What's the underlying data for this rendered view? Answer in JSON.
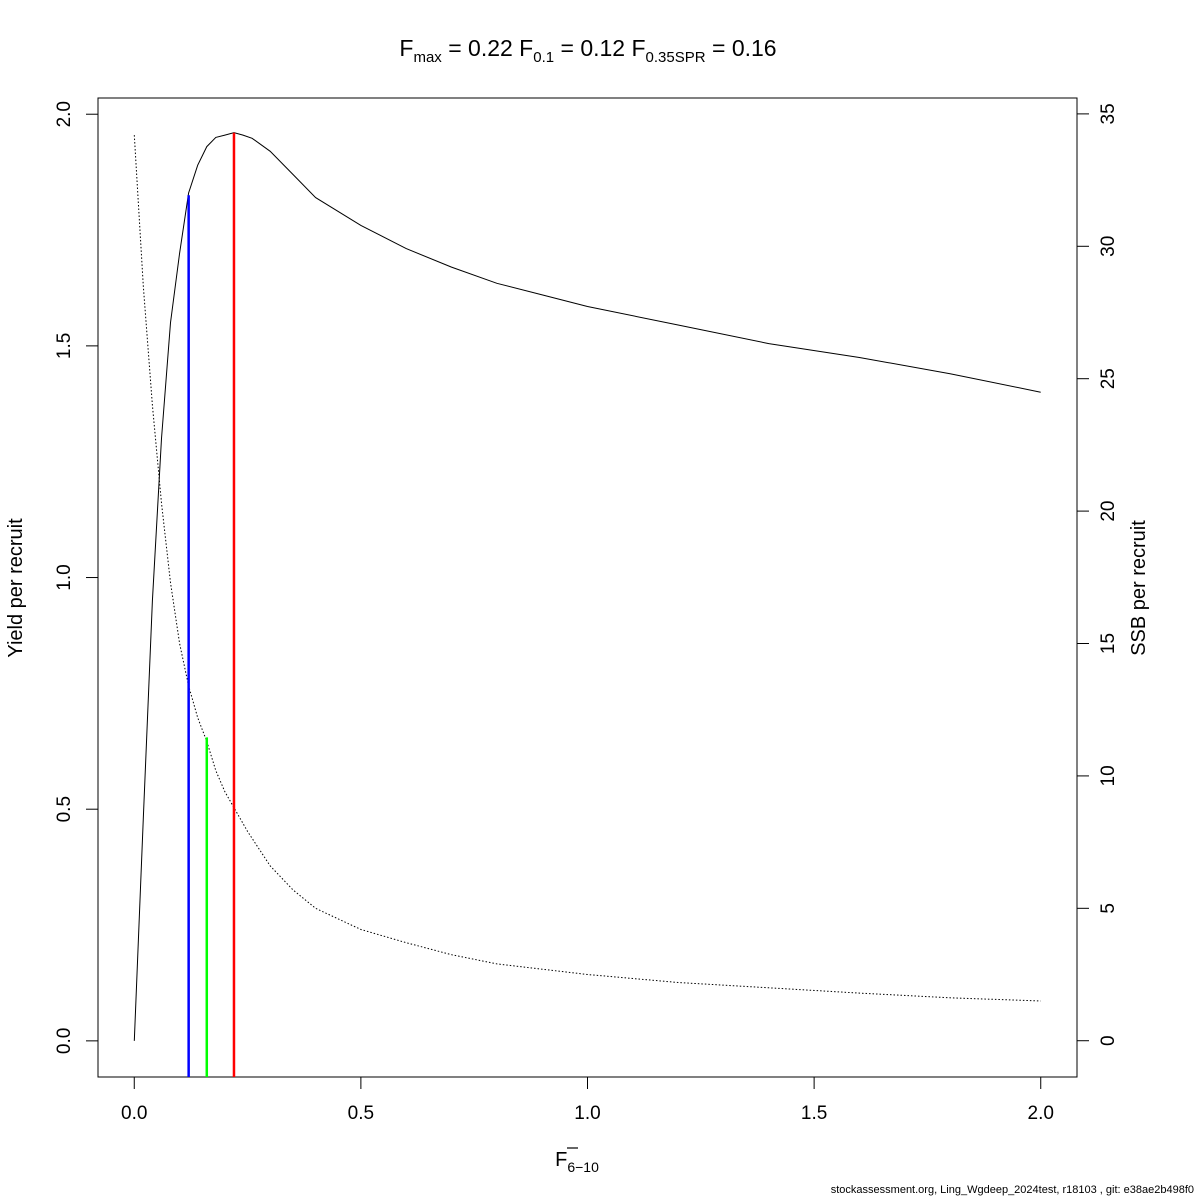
{
  "chart_data": {
    "type": "line",
    "title": {
      "fmax_sub": "max",
      "fmax_value": "0.22",
      "f01_sub": "0.1",
      "f01_value": "0.12",
      "fspr_sub": "0.35SPR",
      "fspr_value": "0.16"
    },
    "xlabel_main": "F",
    "xlabel_sub": "6−10",
    "ylabel": "Yield per recruit",
    "y2label": "SSB per recruit",
    "xlim": [
      -0.08,
      2.08
    ],
    "ylim": [
      -0.078,
      2.035
    ],
    "y2lim": [
      -1.37,
      35.6
    ],
    "x_ticks": [
      0.0,
      0.5,
      1.0,
      1.5,
      2.0
    ],
    "x_tick_labels": [
      "0.0",
      "0.5",
      "1.0",
      "1.5",
      "2.0"
    ],
    "y_ticks": [
      0.0,
      0.5,
      1.0,
      1.5,
      2.0
    ],
    "y_tick_labels": [
      "0.0",
      "0.5",
      "1.0",
      "1.5",
      "2.0"
    ],
    "y2_ticks": [
      0,
      5,
      10,
      15,
      20,
      25,
      30,
      35
    ],
    "y2_tick_labels": [
      "0",
      "5",
      "10",
      "15",
      "20",
      "25",
      "30",
      "35"
    ],
    "series": [
      {
        "id": "yield",
        "axis": "left",
        "style": "solid",
        "color": "#000000",
        "x": [
          0.0,
          0.02,
          0.04,
          0.06,
          0.08,
          0.1,
          0.12,
          0.14,
          0.16,
          0.18,
          0.2,
          0.22,
          0.24,
          0.26,
          0.3,
          0.35,
          0.4,
          0.5,
          0.6,
          0.7,
          0.8,
          0.9,
          1.0,
          1.2,
          1.4,
          1.6,
          1.8,
          2.0
        ],
        "values": [
          0.0,
          0.48,
          0.95,
          1.3,
          1.55,
          1.7,
          1.83,
          1.89,
          1.93,
          1.95,
          1.955,
          1.96,
          1.955,
          1.948,
          1.92,
          1.87,
          1.82,
          1.76,
          1.71,
          1.67,
          1.635,
          1.61,
          1.585,
          1.545,
          1.505,
          1.475,
          1.44,
          1.4
        ]
      },
      {
        "id": "ssb",
        "axis": "right",
        "style": "dotted",
        "color": "#000000",
        "x": [
          0.0,
          0.02,
          0.04,
          0.06,
          0.08,
          0.1,
          0.12,
          0.14,
          0.16,
          0.18,
          0.2,
          0.22,
          0.25,
          0.3,
          0.35,
          0.4,
          0.45,
          0.5,
          0.6,
          0.7,
          0.8,
          0.9,
          1.0,
          1.2,
          1.4,
          1.6,
          1.8,
          2.0
        ],
        "values": [
          34.2,
          28.5,
          24.0,
          20.3,
          17.3,
          15.0,
          13.4,
          12.2,
          11.3,
          10.2,
          9.4,
          8.8,
          7.9,
          6.6,
          5.7,
          5.0,
          4.6,
          4.2,
          3.7,
          3.25,
          2.9,
          2.7,
          2.5,
          2.2,
          2.0,
          1.8,
          1.62,
          1.5
        ]
      }
    ],
    "reference_lines": [
      {
        "name": "F0.1",
        "x": 0.12,
        "y": 1.825,
        "color": "#0000ff"
      },
      {
        "name": "F0.35SPR",
        "x": 0.16,
        "y": 0.655,
        "color": "#00ff00"
      },
      {
        "name": "Fmax",
        "x": 0.22,
        "y": 1.96,
        "color": "#ff0000"
      }
    ]
  },
  "footer": "stockassessment.org, Ling_Wgdeep_2024test, r18103 , git: e38ae2b498f0"
}
